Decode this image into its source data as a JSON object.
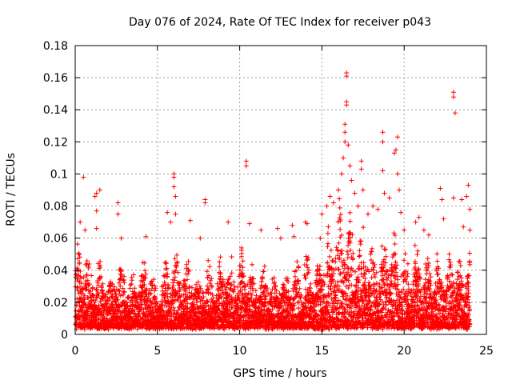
{
  "chart_data": {
    "type": "scatter",
    "title": "Day 076 of 2024, Rate Of TEC Index for receiver p043",
    "xlabel": "GPS time / hours",
    "ylabel": "ROTI / TECUs",
    "xlim": [
      0,
      25
    ],
    "ylim": [
      0,
      0.18
    ],
    "xticks": [
      0,
      5,
      10,
      15,
      20,
      25
    ],
    "xtick_labels": [
      "0",
      "5",
      "10",
      "15",
      "20",
      "25"
    ],
    "yticks": [
      0,
      0.02,
      0.04,
      0.06,
      0.08,
      0.1,
      0.12,
      0.14,
      0.16,
      0.18
    ],
    "ytick_labels": [
      "0",
      "0.02",
      "0.04",
      "0.06",
      "0.08",
      "0.1",
      "0.12",
      "0.14",
      "0.16",
      "0.18"
    ],
    "grid": true,
    "marker": "+",
    "color": "#ff0000",
    "series": [
      {
        "name": "ROTI",
        "envelope_hours": [
          0,
          0.5,
          1,
          1.5,
          2,
          2.5,
          3,
          3.5,
          4,
          4.5,
          5,
          5.5,
          6,
          6.5,
          7,
          7.5,
          8,
          8.5,
          9,
          9.5,
          10,
          10.5,
          11,
          11.5,
          12,
          12.5,
          13,
          13.5,
          14,
          14.5,
          15,
          15.5,
          16,
          16.5,
          17,
          17.5,
          18,
          18.5,
          19,
          19.5,
          20,
          20.5,
          21,
          21.5,
          22,
          22.5,
          23,
          23.5,
          24
        ],
        "envelope_max": [
          0.05,
          0.06,
          0.045,
          0.05,
          0.035,
          0.045,
          0.04,
          0.035,
          0.04,
          0.05,
          0.025,
          0.045,
          0.05,
          0.05,
          0.045,
          0.04,
          0.045,
          0.04,
          0.05,
          0.045,
          0.05,
          0.05,
          0.04,
          0.045,
          0.035,
          0.04,
          0.04,
          0.045,
          0.05,
          0.04,
          0.055,
          0.07,
          0.08,
          0.09,
          0.07,
          0.065,
          0.06,
          0.055,
          0.065,
          0.06,
          0.05,
          0.055,
          0.05,
          0.045,
          0.05,
          0.045,
          0.055,
          0.05,
          0.06
        ],
        "outliers": [
          [
            0.3,
            0.07
          ],
          [
            0.5,
            0.098
          ],
          [
            0.6,
            0.065
          ],
          [
            1.2,
            0.086
          ],
          [
            1.3,
            0.088
          ],
          [
            1.5,
            0.09
          ],
          [
            1.3,
            0.077
          ],
          [
            1.3,
            0.066
          ],
          [
            2.6,
            0.082
          ],
          [
            2.6,
            0.075
          ],
          [
            2.8,
            0.06
          ],
          [
            4.3,
            0.061
          ],
          [
            5.6,
            0.076
          ],
          [
            5.8,
            0.07
          ],
          [
            6.0,
            0.1
          ],
          [
            6.0,
            0.098
          ],
          [
            6.0,
            0.092
          ],
          [
            6.1,
            0.086
          ],
          [
            6.1,
            0.075
          ],
          [
            7.0,
            0.071
          ],
          [
            7.6,
            0.06
          ],
          [
            7.9,
            0.084
          ],
          [
            7.9,
            0.082
          ],
          [
            9.3,
            0.07
          ],
          [
            10.4,
            0.105
          ],
          [
            10.4,
            0.108
          ],
          [
            10.6,
            0.069
          ],
          [
            11.3,
            0.065
          ],
          [
            12.3,
            0.066
          ],
          [
            12.5,
            0.06
          ],
          [
            13.2,
            0.068
          ],
          [
            13.3,
            0.061
          ],
          [
            14.0,
            0.07
          ],
          [
            14.1,
            0.069
          ],
          [
            14.9,
            0.06
          ],
          [
            15.0,
            0.075
          ],
          [
            15.3,
            0.08
          ],
          [
            15.5,
            0.086
          ],
          [
            15.7,
            0.082
          ],
          [
            16.0,
            0.09
          ],
          [
            16.2,
            0.1
          ],
          [
            16.3,
            0.11
          ],
          [
            16.4,
            0.12
          ],
          [
            16.4,
            0.126
          ],
          [
            16.4,
            0.131
          ],
          [
            16.5,
            0.143
          ],
          [
            16.5,
            0.145
          ],
          [
            16.5,
            0.161
          ],
          [
            16.5,
            0.163
          ],
          [
            16.6,
            0.118
          ],
          [
            16.7,
            0.105
          ],
          [
            16.8,
            0.096
          ],
          [
            17.0,
            0.088
          ],
          [
            17.2,
            0.08
          ],
          [
            17.4,
            0.108
          ],
          [
            17.4,
            0.103
          ],
          [
            17.5,
            0.09
          ],
          [
            17.8,
            0.075
          ],
          [
            18.1,
            0.08
          ],
          [
            18.4,
            0.078
          ],
          [
            18.7,
            0.126
          ],
          [
            18.7,
            0.12
          ],
          [
            18.7,
            0.102
          ],
          [
            18.8,
            0.088
          ],
          [
            19.1,
            0.085
          ],
          [
            19.4,
            0.113
          ],
          [
            19.5,
            0.115
          ],
          [
            19.6,
            0.123
          ],
          [
            19.6,
            0.1
          ],
          [
            19.7,
            0.09
          ],
          [
            19.8,
            0.076
          ],
          [
            20.0,
            0.065
          ],
          [
            20.7,
            0.07
          ],
          [
            20.9,
            0.073
          ],
          [
            21.2,
            0.065
          ],
          [
            21.5,
            0.062
          ],
          [
            22.2,
            0.091
          ],
          [
            22.3,
            0.084
          ],
          [
            22.4,
            0.072
          ],
          [
            23.0,
            0.151
          ],
          [
            23.0,
            0.148
          ],
          [
            23.1,
            0.138
          ],
          [
            23.0,
            0.085
          ],
          [
            23.5,
            0.084
          ],
          [
            23.6,
            0.067
          ],
          [
            23.8,
            0.086
          ],
          [
            23.9,
            0.093
          ],
          [
            24.0,
            0.078
          ],
          [
            24.0,
            0.065
          ]
        ]
      }
    ]
  }
}
